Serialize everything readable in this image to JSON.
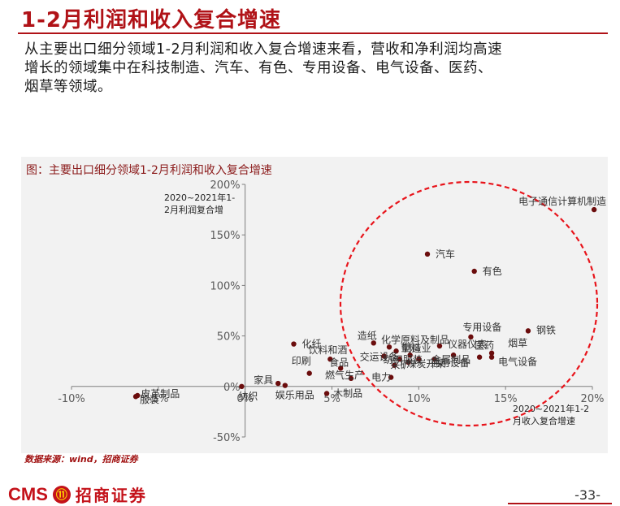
{
  "page": {
    "title": "1-2月利润和收入复合增速",
    "body_lines": [
      "从主要出口细分领域1-2月利润和收入复合增速来看，营收和净利润均高速",
      "增长的领域集中在科技制造、汽车、有色、专用设备、电气设备、医药、",
      "烟草等领域。"
    ],
    "source": "数据来源：wind，招商证券",
    "logo_text": "CMS",
    "logo_cn": "招商证券",
    "page_number": "-33-"
  },
  "chart_data": {
    "type": "scatter",
    "title": "图：主要出口细分领域1-2月利润和收入复合增速",
    "ylabel_lines": [
      "2020~2021年1-",
      "2月利润复合增"
    ],
    "xlabel_lines": [
      "2020~2021年1-2",
      "月收入复合增速"
    ],
    "xlim": [
      -10,
      20
    ],
    "ylim": [
      -50,
      200
    ],
    "x_ticks": [
      -10,
      -5,
      0,
      5,
      10,
      15,
      20
    ],
    "x_tick_labels": [
      "-10%",
      "-5%",
      "0%",
      "5%",
      "10%",
      "15%",
      "20%"
    ],
    "y_ticks": [
      -50,
      0,
      50,
      100,
      150,
      200
    ],
    "y_tick_labels": [
      "-50%",
      "0%",
      "50%",
      "100%",
      "150%",
      "200%"
    ],
    "grid": false,
    "marker_color": "#6b0d0d",
    "highlight_color": "#e8141b",
    "points": [
      {
        "name": "电子通信计算机制造",
        "x": 20.1,
        "y": 175
      },
      {
        "name": "汽车",
        "x": 10.5,
        "y": 131
      },
      {
        "name": "有色",
        "x": 13.2,
        "y": 114
      },
      {
        "name": "专用设备",
        "x": 13.0,
        "y": 49
      },
      {
        "name": "钢铁",
        "x": 16.3,
        "y": 55
      },
      {
        "name": "烟草",
        "x": 14.2,
        "y": 33
      },
      {
        "name": "电气设备",
        "x": 14.2,
        "y": 29
      },
      {
        "name": "医药",
        "x": 13.5,
        "y": 29
      },
      {
        "name": "仪器仪表",
        "x": 11.2,
        "y": 40
      },
      {
        "name": "金属制品",
        "x": 12.0,
        "y": 31
      },
      {
        "name": "通用设备",
        "x": 10.9,
        "y": 27
      },
      {
        "name": "化学原料及制品",
        "x": 8.3,
        "y": 39
      },
      {
        "name": "造纸",
        "x": 7.4,
        "y": 43
      },
      {
        "name": "塑料",
        "x": 8.7,
        "y": 35
      },
      {
        "name": "制造业",
        "x": 9.5,
        "y": 31
      },
      {
        "name": "煤炭开采",
        "x": 10.0,
        "y": 27
      },
      {
        "name": "交运设备",
        "x": 8.0,
        "y": 30
      },
      {
        "name": "纺织服装",
        "x": 8.9,
        "y": 27
      },
      {
        "name": "采矿",
        "x": 8.6,
        "y": 21
      },
      {
        "name": "纺织",
        "x": 9.4,
        "y": 24
      },
      {
        "name": "化纤",
        "x": 2.8,
        "y": 42
      },
      {
        "name": "饮料和酒",
        "x": 4.9,
        "y": 27
      },
      {
        "name": "印刷",
        "x": 3.7,
        "y": 13
      },
      {
        "name": "食品",
        "x": 5.5,
        "y": 18
      },
      {
        "name": "燃气生产",
        "x": 6.1,
        "y": 8
      },
      {
        "name": "电力",
        "x": 8.4,
        "y": 9
      },
      {
        "name": "家具",
        "x": 1.9,
        "y": 3
      },
      {
        "name": "娱乐用品",
        "x": 2.3,
        "y": 1
      },
      {
        "name": "木制品",
        "x": 4.7,
        "y": -7
      },
      {
        "name": "纺织",
        "x": -0.2,
        "y": 0
      },
      {
        "name": "皮革制品",
        "x": -6.2,
        "y": -9
      },
      {
        "name": "服装",
        "x": -6.3,
        "y": -10
      }
    ],
    "labeled_points": [
      {
        "text": "电子通信计算机制造",
        "ref": 0
      },
      {
        "text": "汽车",
        "ref": 1
      },
      {
        "text": "有色",
        "ref": 2
      },
      {
        "text": "专用设备",
        "ref": 3
      },
      {
        "text": "钢铁",
        "ref": 4
      },
      {
        "text": "烟草",
        "ref": 5
      },
      {
        "text": "电气设备",
        "ref": 6
      },
      {
        "text": "医药",
        "ref": 7
      },
      {
        "text": "仪器仪表",
        "ref": 8
      },
      {
        "text": "金属制品",
        "ref": 9
      },
      {
        "text": "通用设备",
        "ref": 10
      },
      {
        "text": "化学原料及制品",
        "ref": 11
      },
      {
        "text": "造纸",
        "ref": 12
      },
      {
        "text": "塑料",
        "ref": 13
      },
      {
        "text": "制造业",
        "ref": 14
      },
      {
        "text": "煤炭开采",
        "ref": 15
      },
      {
        "text": "交运设备",
        "ref": 16
      },
      {
        "text": "纺织服装",
        "ref": 17
      },
      {
        "text": "采矿",
        "ref": 18
      },
      {
        "text": "化纤",
        "ref": 20
      },
      {
        "text": "饮料和酒",
        "ref": 21
      },
      {
        "text": "印刷",
        "ref": 22
      },
      {
        "text": "食品",
        "ref": 23
      },
      {
        "text": "燃气生产",
        "ref": 24
      },
      {
        "text": "电力",
        "ref": 25
      },
      {
        "text": "家具",
        "ref": 26
      },
      {
        "text": "娱乐用品",
        "ref": 27
      },
      {
        "text": "木制品",
        "ref": 28
      },
      {
        "text": "纺织",
        "ref": 29
      },
      {
        "text": "皮革制品",
        "ref": 30
      },
      {
        "text": "服装",
        "ref": 31
      }
    ]
  }
}
